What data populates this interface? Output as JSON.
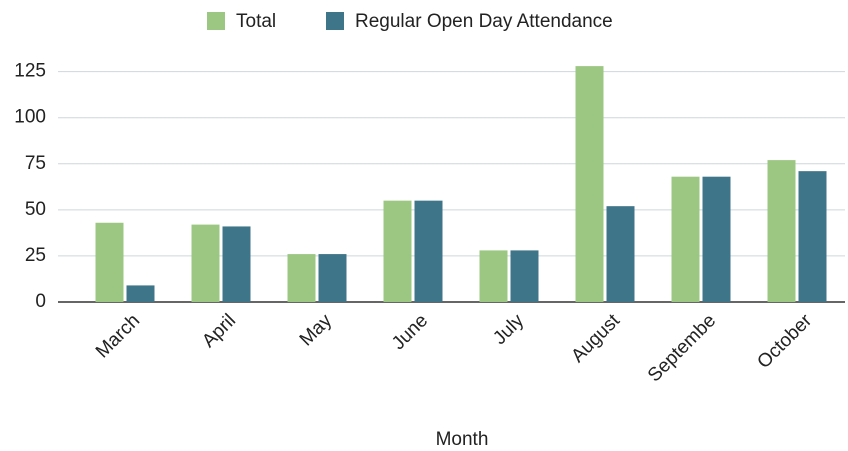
{
  "chart_data": {
    "type": "bar",
    "x_label": "Month",
    "categories": [
      "March",
      "April",
      "May",
      "June",
      "July",
      "August",
      "Septembe",
      "October"
    ],
    "series": [
      {
        "name": "Total",
        "color": "#9cc782",
        "values": [
          43,
          42,
          26,
          55,
          28,
          128,
          68,
          77
        ]
      },
      {
        "name": "Regular Open Day Attendance",
        "color": "#3f7588",
        "values": [
          9,
          41,
          26,
          55,
          28,
          52,
          68,
          71
        ]
      }
    ],
    "ylim": [
      0,
      140
    ],
    "yticks": [
      0,
      25,
      50,
      75,
      100,
      125
    ],
    "grid": true,
    "legend": "top"
  }
}
